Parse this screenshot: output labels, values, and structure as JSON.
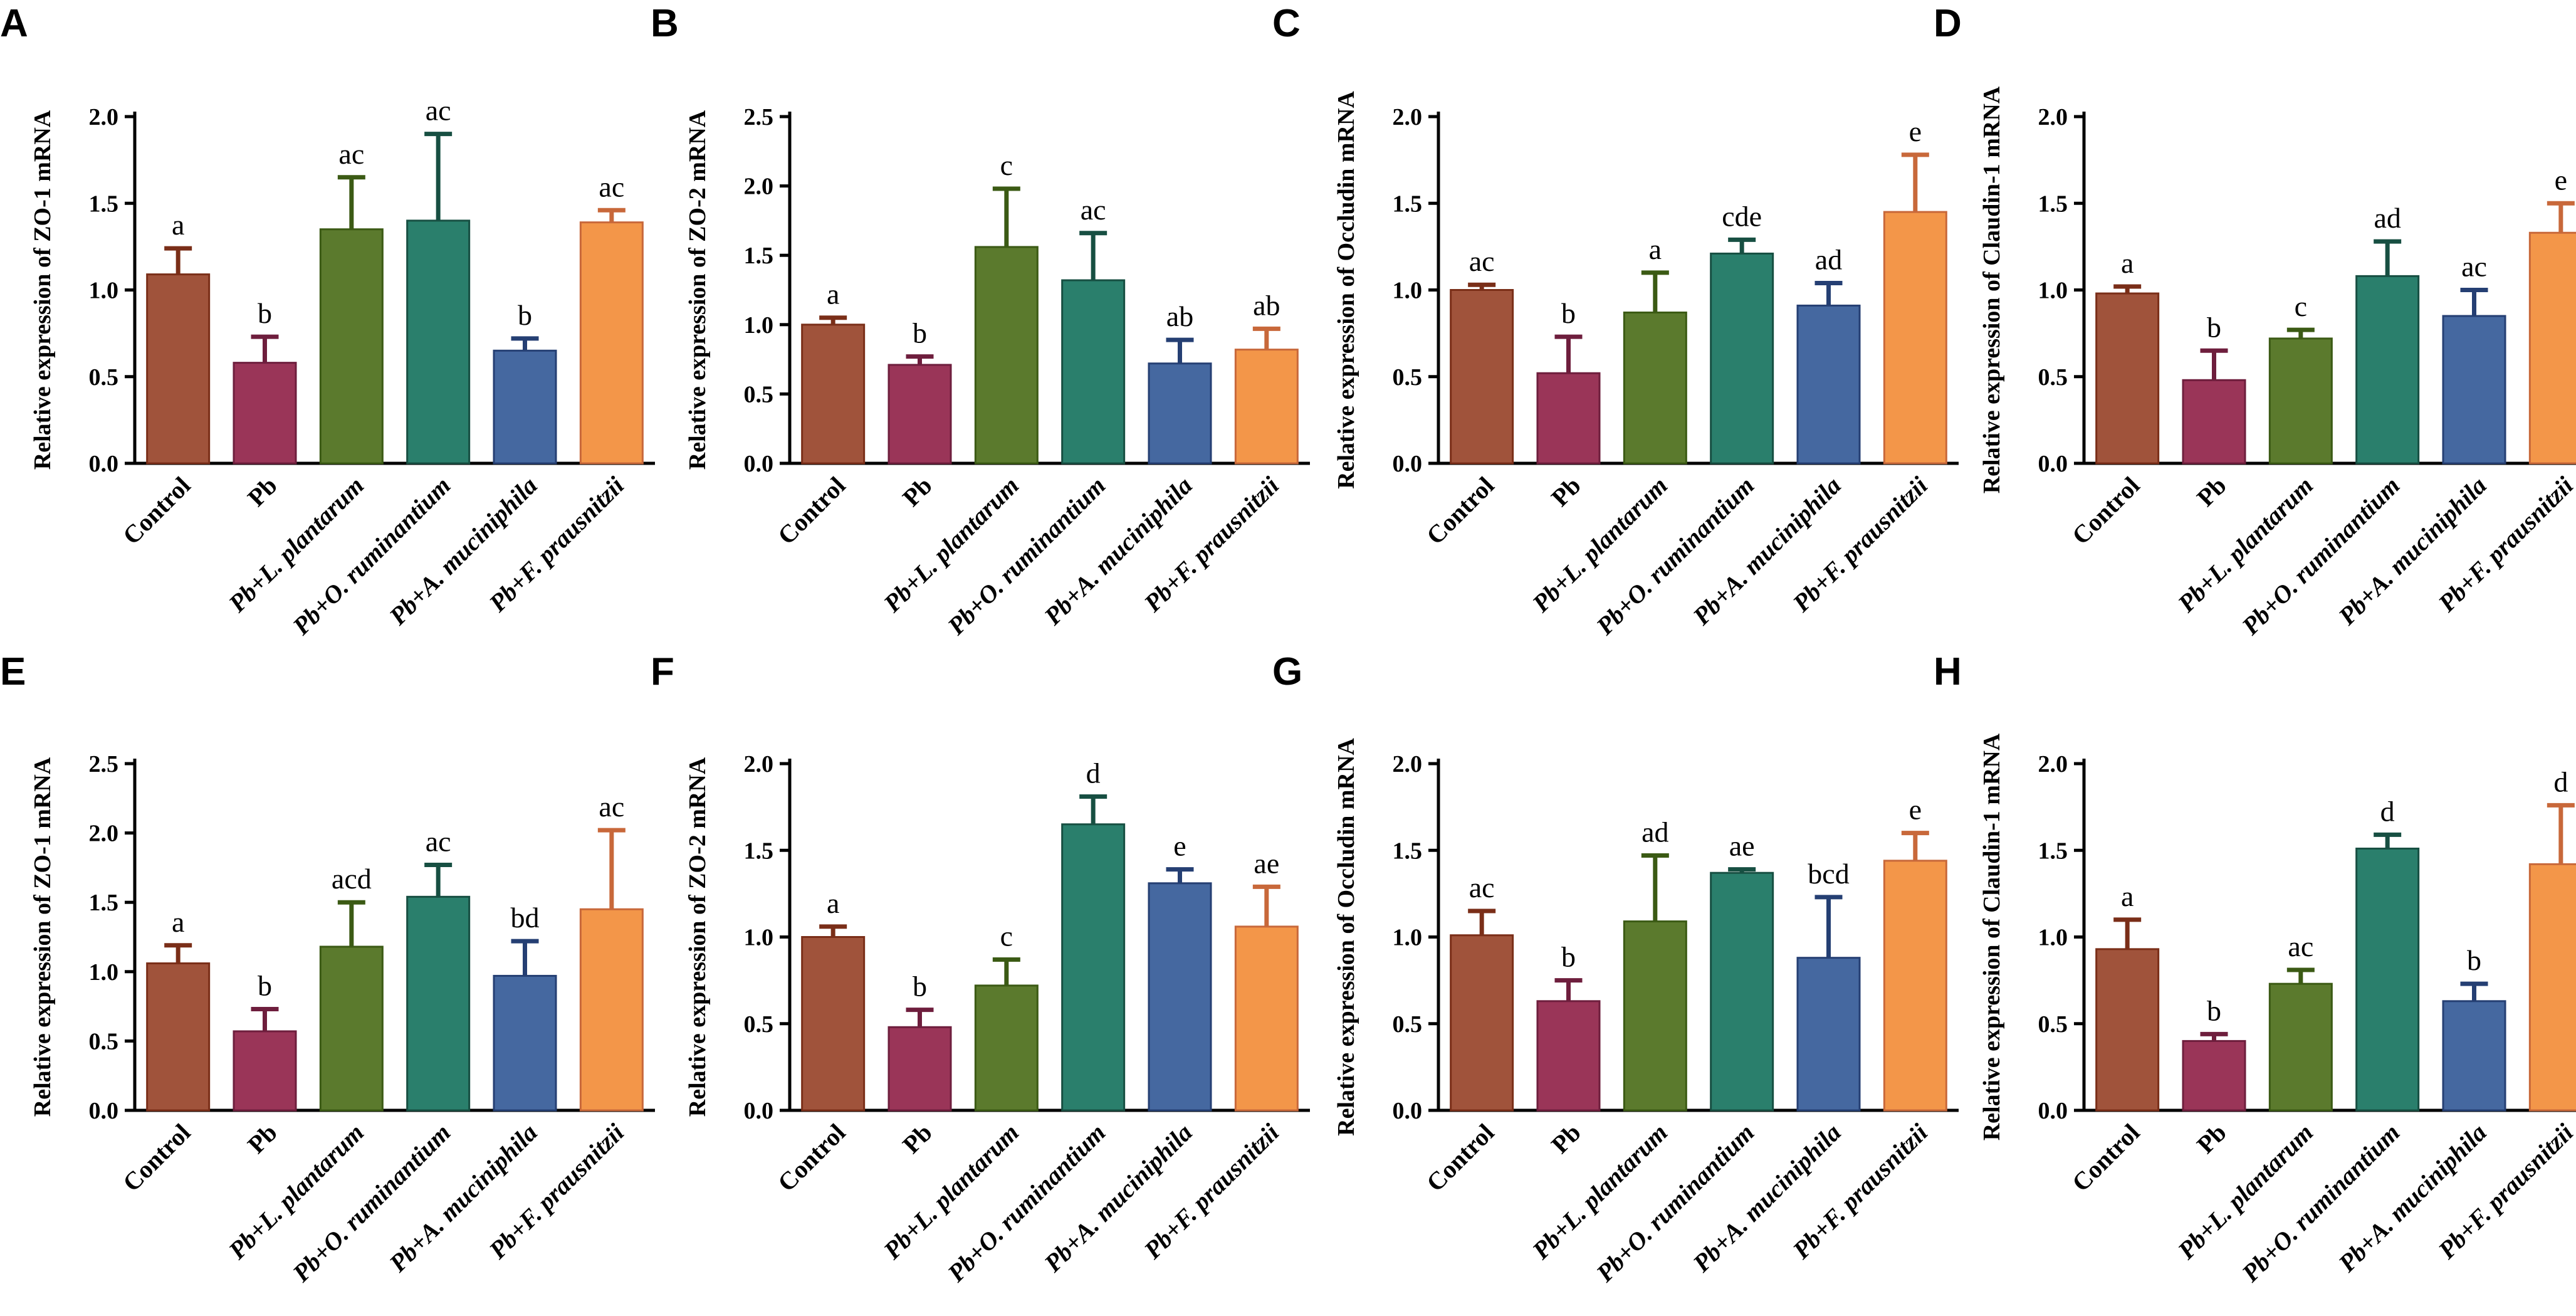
{
  "figure": {
    "groups": [
      "Control",
      "Pb",
      "Pb+L. plantarum",
      "Pb+O. ruminantium",
      "Pb+A. muciniphila",
      "Pb+F. prausnitzii"
    ],
    "colors": [
      "#A0533B",
      "#9A3558",
      "#5B7A2D",
      "#2A7F6C",
      "#4568A0",
      "#F39649"
    ],
    "error_colors": [
      "#7A2E18",
      "#6E1E3D",
      "#3B5A14",
      "#174F42",
      "#253F73",
      "#C8683A"
    ]
  },
  "chart_data": [
    {
      "panel": "A",
      "type": "bar",
      "ylabel": "Relative expression of ZO-1 mRNA",
      "ylim": [
        0,
        2.0
      ],
      "yticks": [
        "0.0",
        "0.5",
        "1.0",
        "1.5",
        "2.0"
      ],
      "categories": [
        "Control",
        "Pb",
        "Pb+L. plantarum",
        "Pb+O. ruminantium",
        "Pb+A. muciniphila",
        "Pb+F. prausnitzii"
      ],
      "values": [
        1.09,
        0.58,
        1.35,
        1.4,
        0.65,
        1.39
      ],
      "errors": [
        0.15,
        0.15,
        0.3,
        0.5,
        0.07,
        0.07
      ],
      "labels": [
        "a",
        "b",
        "ac",
        "ac",
        "b",
        "ac"
      ]
    },
    {
      "panel": "B",
      "type": "bar",
      "ylabel": "Relative expression of ZO-2 mRNA",
      "ylim": [
        0,
        2.5
      ],
      "yticks": [
        "0.0",
        "0.5",
        "1.0",
        "1.5",
        "2.0",
        "2.5"
      ],
      "categories": [
        "Control",
        "Pb",
        "Pb+L. plantarum",
        "Pb+O. ruminantium",
        "Pb+A. muciniphila",
        "Pb+F. prausnitzii"
      ],
      "values": [
        1.0,
        0.71,
        1.56,
        1.32,
        0.72,
        0.82
      ],
      "errors": [
        0.05,
        0.06,
        0.42,
        0.34,
        0.17,
        0.15
      ],
      "labels": [
        "a",
        "b",
        "c",
        "ac",
        "ab",
        "ab"
      ]
    },
    {
      "panel": "C",
      "type": "bar",
      "ylabel": "Relative expression of Occludin mRNA",
      "ylim": [
        0,
        2.0
      ],
      "yticks": [
        "0.0",
        "0.5",
        "1.0",
        "1.5",
        "2.0"
      ],
      "categories": [
        "Control",
        "Pb",
        "Pb+L. plantarum",
        "Pb+O. ruminantium",
        "Pb+A. muciniphila",
        "Pb+F. prausnitzii"
      ],
      "values": [
        1.0,
        0.52,
        0.87,
        1.21,
        0.91,
        1.45
      ],
      "errors": [
        0.03,
        0.21,
        0.23,
        0.08,
        0.13,
        0.33
      ],
      "labels": [
        "ac",
        "b",
        "a",
        "cde",
        "ad",
        "e"
      ]
    },
    {
      "panel": "D",
      "type": "bar",
      "ylabel": "Relative expression of Claudin-1 mRNA",
      "ylim": [
        0,
        2.0
      ],
      "yticks": [
        "0.0",
        "0.5",
        "1.0",
        "1.5",
        "2.0"
      ],
      "categories": [
        "Control",
        "Pb",
        "Pb+L. plantarum",
        "Pb+O. ruminantium",
        "Pb+A. muciniphila",
        "Pb+F. prausnitzii"
      ],
      "values": [
        0.98,
        0.48,
        0.72,
        1.08,
        0.85,
        1.33
      ],
      "errors": [
        0.04,
        0.17,
        0.05,
        0.2,
        0.15,
        0.17
      ],
      "labels": [
        "a",
        "b",
        "c",
        "ad",
        "ac",
        "e"
      ]
    },
    {
      "panel": "E",
      "type": "bar",
      "ylabel": "Relative expression of ZO-1 mRNA",
      "ylim": [
        0,
        2.5
      ],
      "yticks": [
        "0.0",
        "0.5",
        "1.0",
        "1.5",
        "2.0",
        "2.5"
      ],
      "categories": [
        "Control",
        "Pb",
        "Pb+L. plantarum",
        "Pb+O. ruminantium",
        "Pb+A. muciniphila",
        "Pb+F. prausnitzii"
      ],
      "values": [
        1.06,
        0.57,
        1.18,
        1.54,
        0.97,
        1.45
      ],
      "errors": [
        0.13,
        0.16,
        0.32,
        0.23,
        0.25,
        0.57
      ],
      "labels": [
        "a",
        "b",
        "acd",
        "ac",
        "bd",
        "ac"
      ]
    },
    {
      "panel": "F",
      "type": "bar",
      "ylabel": "Relative expression of ZO-2 mRNA",
      "ylim": [
        0,
        2.0
      ],
      "yticks": [
        "0.0",
        "0.5",
        "1.0",
        "1.5",
        "2.0"
      ],
      "categories": [
        "Control",
        "Pb",
        "Pb+L. plantarum",
        "Pb+O. ruminantium",
        "Pb+A. muciniphila",
        "Pb+F. prausnitzii"
      ],
      "values": [
        1.0,
        0.48,
        0.72,
        1.65,
        1.31,
        1.06
      ],
      "errors": [
        0.06,
        0.1,
        0.15,
        0.16,
        0.08,
        0.23
      ],
      "labels": [
        "a",
        "b",
        "c",
        "d",
        "e",
        "ae"
      ]
    },
    {
      "panel": "G",
      "type": "bar",
      "ylabel": "Relative expression of Occludin mRNA",
      "ylim": [
        0,
        2.0
      ],
      "yticks": [
        "0.0",
        "0.5",
        "1.0",
        "1.5",
        "2.0"
      ],
      "categories": [
        "Control",
        "Pb",
        "Pb+L. plantarum",
        "Pb+O. ruminantium",
        "Pb+A. muciniphila",
        "Pb+F. prausnitzii"
      ],
      "values": [
        1.01,
        0.63,
        1.09,
        1.37,
        0.88,
        1.44
      ],
      "errors": [
        0.14,
        0.12,
        0.38,
        0.02,
        0.35,
        0.16
      ],
      "labels": [
        "ac",
        "b",
        "ad",
        "ae",
        "bcd",
        "e"
      ]
    },
    {
      "panel": "H",
      "type": "bar",
      "ylabel": "Relative expression of Claudin-1 mRNA",
      "ylim": [
        0,
        2.0
      ],
      "yticks": [
        "0.0",
        "0.5",
        "1.0",
        "1.5",
        "2.0"
      ],
      "categories": [
        "Control",
        "Pb",
        "Pb+L. plantarum",
        "Pb+O. ruminantium",
        "Pb+A. muciniphila",
        "Pb+F. prausnitzii"
      ],
      "values": [
        0.93,
        0.4,
        0.73,
        1.51,
        0.63,
        1.42
      ],
      "errors": [
        0.17,
        0.04,
        0.08,
        0.08,
        0.1,
        0.34
      ],
      "labels": [
        "a",
        "b",
        "ac",
        "d",
        "b",
        "d"
      ]
    }
  ]
}
